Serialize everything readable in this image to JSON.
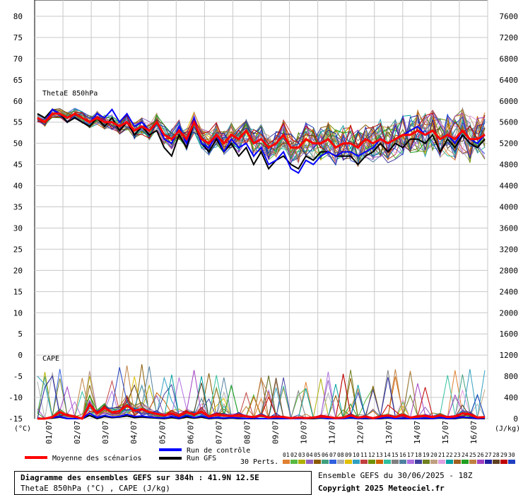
{
  "chart_data": {
    "type": "line",
    "x_ticks": [
      "01/07",
      "02/07",
      "03/07",
      "04/07",
      "05/07",
      "06/07",
      "07/07",
      "08/07",
      "09/07",
      "10/07",
      "11/07",
      "12/07",
      "13/07",
      "14/07",
      "15/07",
      "16/07"
    ],
    "left_axis": {
      "unit": "(°C)",
      "ticks": [
        80,
        75,
        70,
        65,
        60,
        55,
        50,
        45,
        40,
        35,
        30,
        25,
        20,
        15,
        10,
        5,
        0,
        -5,
        -10,
        -15
      ],
      "ylim": [
        -15,
        80
      ]
    },
    "right_axis": {
      "unit": "(J/kg)",
      "ticks": [
        7600,
        7200,
        6800,
        6400,
        6000,
        5600,
        5200,
        4800,
        4400,
        4000,
        3600,
        3200,
        2800,
        2400,
        2000,
        1600,
        1200,
        800,
        400,
        0
      ],
      "ylim": [
        0,
        7600
      ]
    },
    "theta_label": "ThetaE 850hPa",
    "cape_label": "CAPE",
    "theta_mean": [
      56,
      55,
      57,
      57,
      56,
      57,
      56,
      55,
      56,
      55,
      55,
      54,
      55,
      53,
      54,
      53,
      55,
      52,
      51,
      53,
      51,
      55,
      51,
      50,
      52,
      50,
      52,
      51,
      53,
      50,
      51,
      49,
      50,
      52,
      49,
      49,
      51,
      50,
      50,
      51,
      49,
      50,
      50,
      49,
      51,
      50,
      51,
      50,
      51,
      52,
      52,
      53,
      52,
      53,
      51,
      52,
      51,
      53,
      51,
      51,
      52
    ],
    "theta_control": [
      56,
      55,
      58,
      57,
      56,
      57,
      56,
      55,
      57,
      56,
      58,
      55,
      57,
      54,
      55,
      53,
      55,
      51,
      50,
      54,
      50,
      56,
      50,
      49,
      52,
      48,
      51,
      49,
      50,
      47,
      49,
      45,
      46,
      48,
      44,
      43,
      46,
      45,
      47,
      48,
      47,
      48,
      48,
      47,
      48,
      49,
      51,
      50,
      51,
      52,
      53,
      54,
      52,
      53,
      51,
      52,
      50,
      53,
      51,
      50,
      52
    ],
    "theta_gfs": [
      57,
      56,
      58,
      57,
      55,
      56,
      55,
      54,
      56,
      54,
      56,
      53,
      55,
      52,
      54,
      52,
      53,
      49,
      47,
      52,
      49,
      55,
      50,
      48,
      51,
      48,
      50,
      47,
      49,
      45,
      48,
      44,
      46,
      47,
      45,
      44,
      47,
      46,
      48,
      48,
      47,
      47,
      47,
      45,
      47,
      48,
      50,
      48,
      50,
      49,
      51,
      51,
      50,
      52,
      48,
      51,
      49,
      52,
      50,
      49,
      51
    ],
    "cape_mean": [
      0,
      0,
      30,
      120,
      60,
      40,
      0,
      270,
      100,
      200,
      120,
      140,
      250,
      150,
      180,
      120,
      90,
      60,
      100,
      50,
      120,
      80,
      130,
      40,
      70,
      60,
      50,
      70,
      40,
      30,
      60,
      20,
      40,
      30,
      10,
      20,
      10,
      20,
      40,
      30,
      10,
      20,
      60,
      20,
      40,
      10,
      40,
      60,
      30,
      70,
      20,
      40,
      50,
      30,
      60,
      30,
      40,
      100,
      80,
      20,
      30
    ],
    "cape_control": [
      0,
      0,
      20,
      40,
      0,
      0,
      0,
      100,
      20,
      60,
      30,
      40,
      80,
      40,
      50,
      30,
      20,
      10,
      40,
      10,
      60,
      20,
      50,
      10,
      20,
      10,
      20,
      10,
      0,
      10,
      0,
      0,
      10,
      0,
      0,
      0,
      0,
      10,
      20,
      0,
      0,
      0,
      20,
      0,
      10,
      0,
      10,
      20,
      0,
      10,
      0,
      0,
      10,
      0,
      20,
      0,
      10,
      30,
      20,
      0,
      10
    ],
    "cape_gfs": [
      0,
      0,
      10,
      30,
      0,
      0,
      0,
      60,
      0,
      40,
      20,
      30,
      50,
      20,
      30,
      20,
      10,
      0,
      20,
      0,
      30,
      10,
      30,
      0,
      10,
      0,
      10,
      0,
      0,
      0,
      0,
      0,
      0,
      0,
      0,
      0,
      0,
      0,
      10,
      0,
      0,
      0,
      10,
      0,
      0,
      0,
      0,
      10,
      0,
      0,
      0,
      0,
      0,
      0,
      10,
      0,
      0,
      20,
      10,
      0,
      0
    ],
    "member_colors": [
      "#e08030",
      "#58b840",
      "#b0b000",
      "#9060c0",
      "#8a5a00",
      "#40a080",
      "#3060e0",
      "#b0b0b0",
      "#e0c000",
      "#30a0c0",
      "#c04040",
      "#709000",
      "#d06000",
      "#30c0a0",
      "#808080",
      "#5080a0",
      "#b070e0",
      "#4040a0",
      "#708020",
      "#c0a080",
      "#e0a0e0",
      "#00a0a0",
      "#a06020",
      "#20a020",
      "#c08040",
      "#a040c0",
      "#2020a0",
      "#604020",
      "#c00000",
      "#2040c0"
    ]
  },
  "legend": {
    "mean": "Moyenne des scénarios",
    "control": "Run de contrôle",
    "gfs": "Run GFS",
    "perts": "30 Perts.",
    "pert_numbers": [
      "01",
      "02",
      "03",
      "04",
      "05",
      "06",
      "07",
      "08",
      "09",
      "10",
      "11",
      "12",
      "13",
      "14",
      "15",
      "16",
      "17",
      "18",
      "19",
      "20",
      "21",
      "22",
      "23",
      "24",
      "25",
      "26",
      "27",
      "28",
      "29",
      "30"
    ],
    "mean_color": "#ff0000",
    "control_color": "#0000ff",
    "gfs_color": "#000000"
  },
  "footer": {
    "title": "Diagramme des ensembles GEFS sur 384h : 41.9N 12.5E",
    "subtitle": "ThetaE 850hPa (°C) , CAPE (J/kg)",
    "run": "Ensemble GEFS du 30/06/2025 - 18Z",
    "copyright": "Copyright 2025 Meteociel.fr"
  }
}
